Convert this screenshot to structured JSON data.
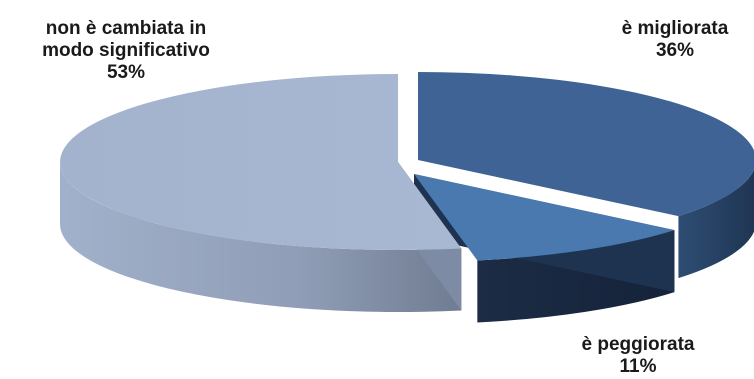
{
  "chart_data": {
    "type": "pie",
    "style": "3d-exploded",
    "slices": [
      {
        "label": "è migliorata",
        "value": 36,
        "value_label": "36%",
        "color": "#3e6394"
      },
      {
        "label": "è peggiorata",
        "value": 11,
        "value_label": "11%",
        "color": "#4a79b0"
      },
      {
        "label": [
          "non è cambiata in",
          "modo significativo"
        ],
        "value": 53,
        "value_label": "53%",
        "color": "#a4b4cf"
      }
    ]
  }
}
